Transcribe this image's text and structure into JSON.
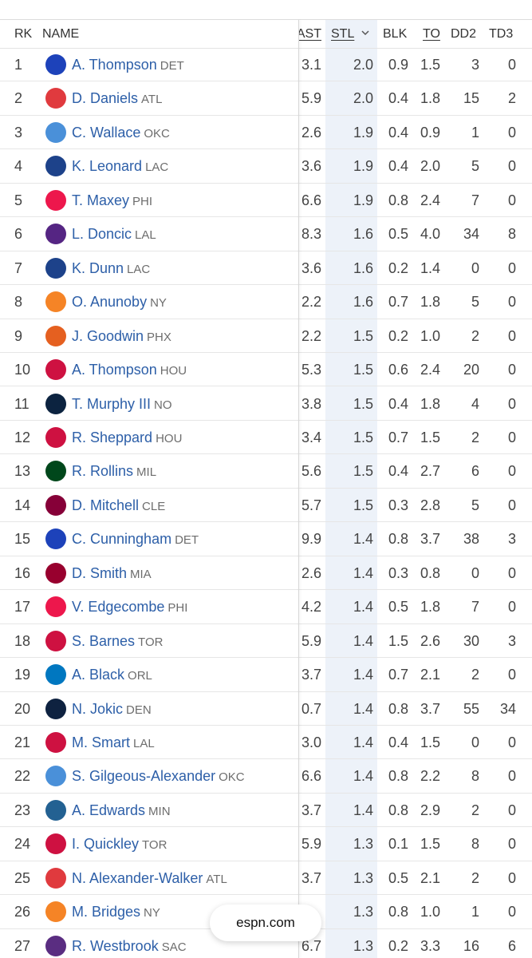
{
  "table": {
    "headers": {
      "rk": "RK",
      "name": "NAME",
      "ast": "AST",
      "stl": "STL",
      "blk": "BLK",
      "to": "TO",
      "dd2": "DD2",
      "td3": "TD3"
    },
    "rows": [
      {
        "rk": 1,
        "name": "A. Thompson",
        "team": "DET",
        "logo": "#1d42ba",
        "ast": "3.1",
        "stl": "2.0",
        "blk": "0.9",
        "to": "1.5",
        "dd2": 3,
        "td3": 0
      },
      {
        "rk": 2,
        "name": "D. Daniels",
        "team": "ATL",
        "logo": "#e03a3e",
        "ast": "5.9",
        "stl": "2.0",
        "blk": "0.4",
        "to": "1.8",
        "dd2": 15,
        "td3": 2
      },
      {
        "rk": 3,
        "name": "C. Wallace",
        "team": "OKC",
        "logo": "#4a90d9",
        "ast": "2.6",
        "stl": "1.9",
        "blk": "0.4",
        "to": "0.9",
        "dd2": 1,
        "td3": 0
      },
      {
        "rk": 4,
        "name": "K. Leonard",
        "team": "LAC",
        "logo": "#1d428a",
        "ast": "3.6",
        "stl": "1.9",
        "blk": "0.4",
        "to": "2.0",
        "dd2": 5,
        "td3": 0
      },
      {
        "rk": 5,
        "name": "T. Maxey",
        "team": "PHI",
        "logo": "#ed174c",
        "ast": "6.6",
        "stl": "1.9",
        "blk": "0.8",
        "to": "2.4",
        "dd2": 7,
        "td3": 0
      },
      {
        "rk": 6,
        "name": "L. Doncic",
        "team": "LAL",
        "logo": "#552583",
        "ast": "8.3",
        "stl": "1.6",
        "blk": "0.5",
        "to": "4.0",
        "dd2": 34,
        "td3": 8
      },
      {
        "rk": 7,
        "name": "K. Dunn",
        "team": "LAC",
        "logo": "#1d428a",
        "ast": "3.6",
        "stl": "1.6",
        "blk": "0.2",
        "to": "1.4",
        "dd2": 0,
        "td3": 0
      },
      {
        "rk": 8,
        "name": "O. Anunoby",
        "team": "NY",
        "logo": "#f58426",
        "ast": "2.2",
        "stl": "1.6",
        "blk": "0.7",
        "to": "1.8",
        "dd2": 5,
        "td3": 0
      },
      {
        "rk": 9,
        "name": "J. Goodwin",
        "team": "PHX",
        "logo": "#e56020",
        "ast": "2.2",
        "stl": "1.5",
        "blk": "0.2",
        "to": "1.0",
        "dd2": 2,
        "td3": 0
      },
      {
        "rk": 10,
        "name": "A. Thompson",
        "team": "HOU",
        "logo": "#ce1141",
        "ast": "5.3",
        "stl": "1.5",
        "blk": "0.6",
        "to": "2.4",
        "dd2": 20,
        "td3": 0
      },
      {
        "rk": 11,
        "name": "T. Murphy III",
        "team": "NO",
        "logo": "#0c2340",
        "ast": "3.8",
        "stl": "1.5",
        "blk": "0.4",
        "to": "1.8",
        "dd2": 4,
        "td3": 0
      },
      {
        "rk": 12,
        "name": "R. Sheppard",
        "team": "HOU",
        "logo": "#ce1141",
        "ast": "3.4",
        "stl": "1.5",
        "blk": "0.7",
        "to": "1.5",
        "dd2": 2,
        "td3": 0
      },
      {
        "rk": 13,
        "name": "R. Rollins",
        "team": "MIL",
        "logo": "#00471b",
        "ast": "5.6",
        "stl": "1.5",
        "blk": "0.4",
        "to": "2.7",
        "dd2": 6,
        "td3": 0
      },
      {
        "rk": 14,
        "name": "D. Mitchell",
        "team": "CLE",
        "logo": "#860038",
        "ast": "5.7",
        "stl": "1.5",
        "blk": "0.3",
        "to": "2.8",
        "dd2": 5,
        "td3": 0
      },
      {
        "rk": 15,
        "name": "C. Cunningham",
        "team": "DET",
        "logo": "#1d42ba",
        "ast": "9.9",
        "stl": "1.4",
        "blk": "0.8",
        "to": "3.7",
        "dd2": 38,
        "td3": 3
      },
      {
        "rk": 16,
        "name": "D. Smith",
        "team": "MIA",
        "logo": "#98002e",
        "ast": "2.6",
        "stl": "1.4",
        "blk": "0.3",
        "to": "0.8",
        "dd2": 0,
        "td3": 0
      },
      {
        "rk": 17,
        "name": "V. Edgecombe",
        "team": "PHI",
        "logo": "#ed174c",
        "ast": "4.2",
        "stl": "1.4",
        "blk": "0.5",
        "to": "1.8",
        "dd2": 7,
        "td3": 0
      },
      {
        "rk": 18,
        "name": "S. Barnes",
        "team": "TOR",
        "logo": "#ce1141",
        "ast": "5.9",
        "stl": "1.4",
        "blk": "1.5",
        "to": "2.6",
        "dd2": 30,
        "td3": 3
      },
      {
        "rk": 19,
        "name": "A. Black",
        "team": "ORL",
        "logo": "#0077c0",
        "ast": "3.7",
        "stl": "1.4",
        "blk": "0.7",
        "to": "2.1",
        "dd2": 2,
        "td3": 0
      },
      {
        "rk": 20,
        "name": "N. Jokic",
        "team": "DEN",
        "logo": "#0e2240",
        "ast": "0.7",
        "stl": "1.4",
        "blk": "0.8",
        "to": "3.7",
        "dd2": 55,
        "td3": 34
      },
      {
        "rk": 21,
        "name": "M. Smart",
        "team": "LAL",
        "logo": "#ce1141",
        "ast": "3.0",
        "stl": "1.4",
        "blk": "0.4",
        "to": "1.5",
        "dd2": 0,
        "td3": 0
      },
      {
        "rk": 22,
        "name": "S. Gilgeous-Alexander",
        "team": "OKC",
        "logo": "#4a90d9",
        "ast": "6.6",
        "stl": "1.4",
        "blk": "0.8",
        "to": "2.2",
        "dd2": 8,
        "td3": 0
      },
      {
        "rk": 23,
        "name": "A. Edwards",
        "team": "MIN",
        "logo": "#236192",
        "ast": "3.7",
        "stl": "1.4",
        "blk": "0.8",
        "to": "2.9",
        "dd2": 2,
        "td3": 0
      },
      {
        "rk": 24,
        "name": "I. Quickley",
        "team": "TOR",
        "logo": "#ce1141",
        "ast": "5.9",
        "stl": "1.3",
        "blk": "0.1",
        "to": "1.5",
        "dd2": 8,
        "td3": 0
      },
      {
        "rk": 25,
        "name": "N. Alexander-Walker",
        "team": "ATL",
        "logo": "#e03a3e",
        "ast": "3.7",
        "stl": "1.3",
        "blk": "0.5",
        "to": "2.1",
        "dd2": 2,
        "td3": 0
      },
      {
        "rk": 26,
        "name": "M. Bridges",
        "team": "NY",
        "logo": "#f58426",
        "ast": null,
        "stl": "1.3",
        "blk": "0.8",
        "to": "1.0",
        "dd2": 1,
        "td3": 0
      },
      {
        "rk": 27,
        "name": "R. Westbrook",
        "team": "SAC",
        "logo": "#5a2d81",
        "ast": "6.7",
        "stl": "1.3",
        "blk": "0.2",
        "to": "3.3",
        "dd2": 16,
        "td3": 6
      }
    ]
  },
  "footer": {
    "site": "espn.com"
  }
}
